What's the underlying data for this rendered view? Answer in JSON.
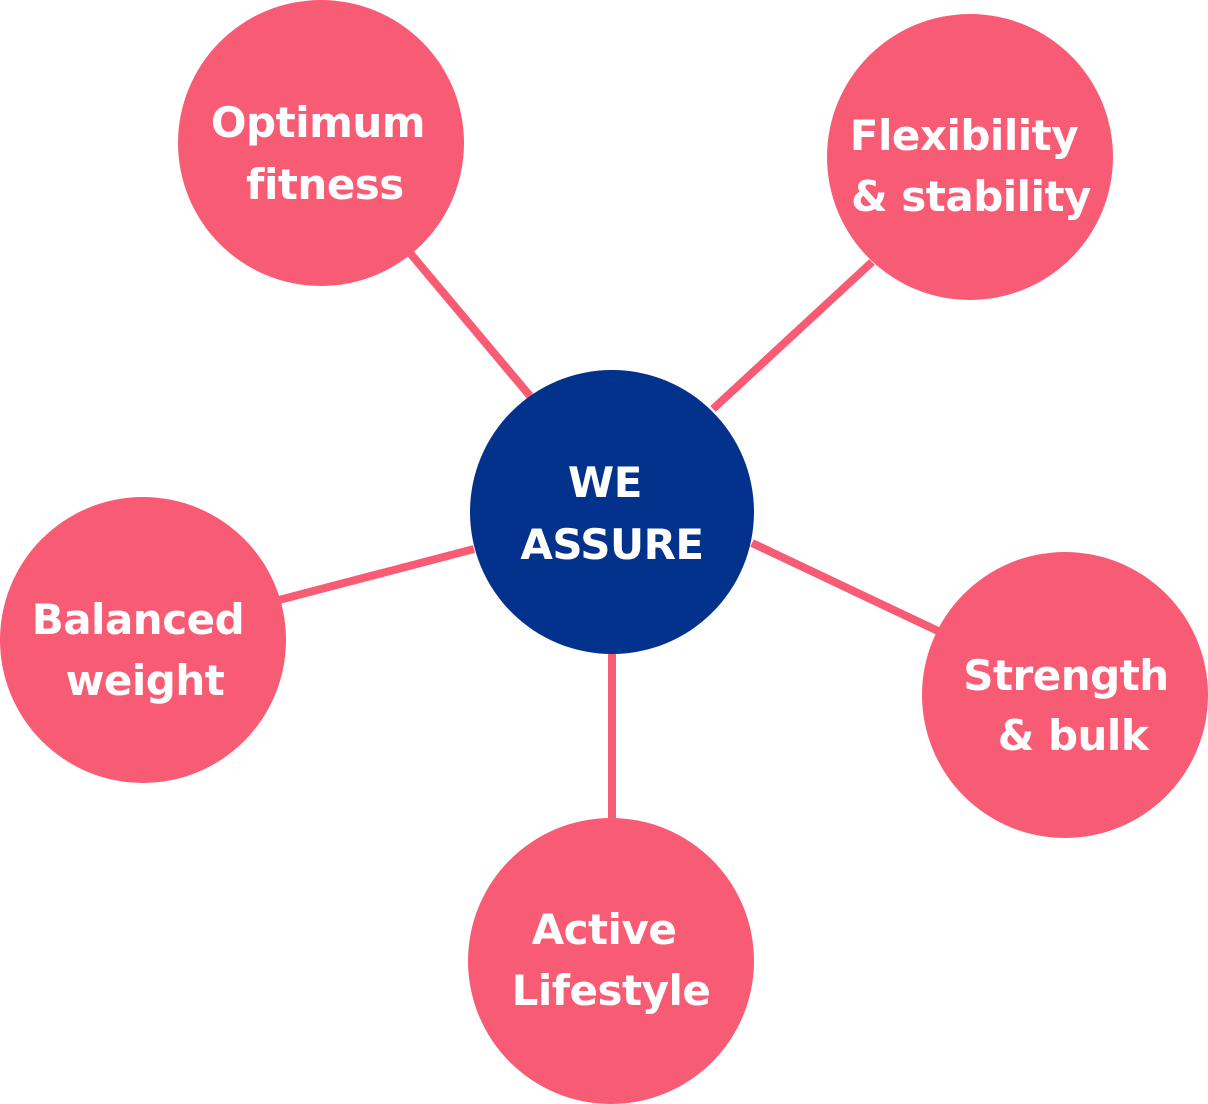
{
  "colors": {
    "center_fill": "#02328b",
    "node_fill": "#f85c74",
    "connector": "#f85c74",
    "text": "#ffffff"
  },
  "center": {
    "lines": [
      "WE",
      "ASSURE"
    ]
  },
  "nodes": [
    {
      "id": "optimum-fitness",
      "lines": [
        "Optimum",
        "fitness"
      ]
    },
    {
      "id": "flexibility-stability",
      "lines": [
        "Flexibility",
        "& stability"
      ]
    },
    {
      "id": "balanced-weight",
      "lines": [
        "Balanced",
        "weight"
      ]
    },
    {
      "id": "strength-bulk",
      "lines": [
        "Strength",
        "& bulk"
      ]
    },
    {
      "id": "active-lifestyle",
      "lines": [
        "Active",
        "Lifestyle"
      ]
    }
  ]
}
